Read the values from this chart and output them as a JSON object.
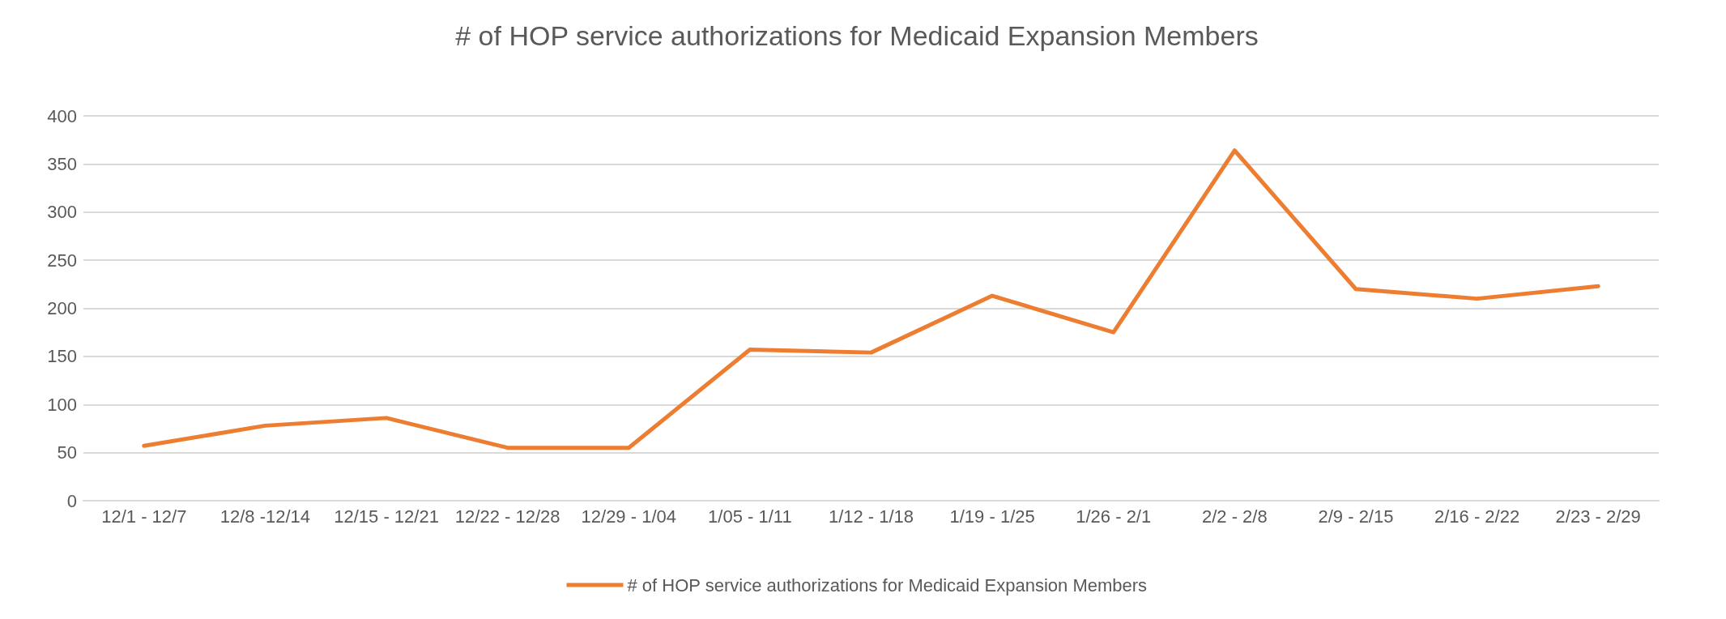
{
  "chart_data": {
    "type": "line",
    "title": "# of HOP service authorizations for Medicaid Expansion Members",
    "categories": [
      "12/1 - 12/7",
      "12/8 -12/14",
      "12/15 - 12/21",
      "12/22 - 12/28",
      "12/29 - 1/04",
      "1/05 - 1/11",
      "1/12 - 1/18",
      "1/19 - 1/25",
      "1/26 - 2/1",
      "2/2 - 2/8",
      "2/9 - 2/15",
      "2/16 - 2/22",
      "2/23 - 2/29"
    ],
    "series": [
      {
        "name": "# of HOP service authorizations for Medicaid Expansion Members",
        "color": "#ed7d31",
        "values": [
          57,
          78,
          86,
          55,
          55,
          157,
          154,
          213,
          175,
          364,
          220,
          210,
          223
        ]
      }
    ],
    "ylim": [
      0,
      400
    ],
    "yticks": [
      0,
      50,
      100,
      150,
      200,
      250,
      300,
      350,
      400
    ],
    "grid": "y",
    "legend": "bottom",
    "marker": "none",
    "line_style": "solid"
  }
}
